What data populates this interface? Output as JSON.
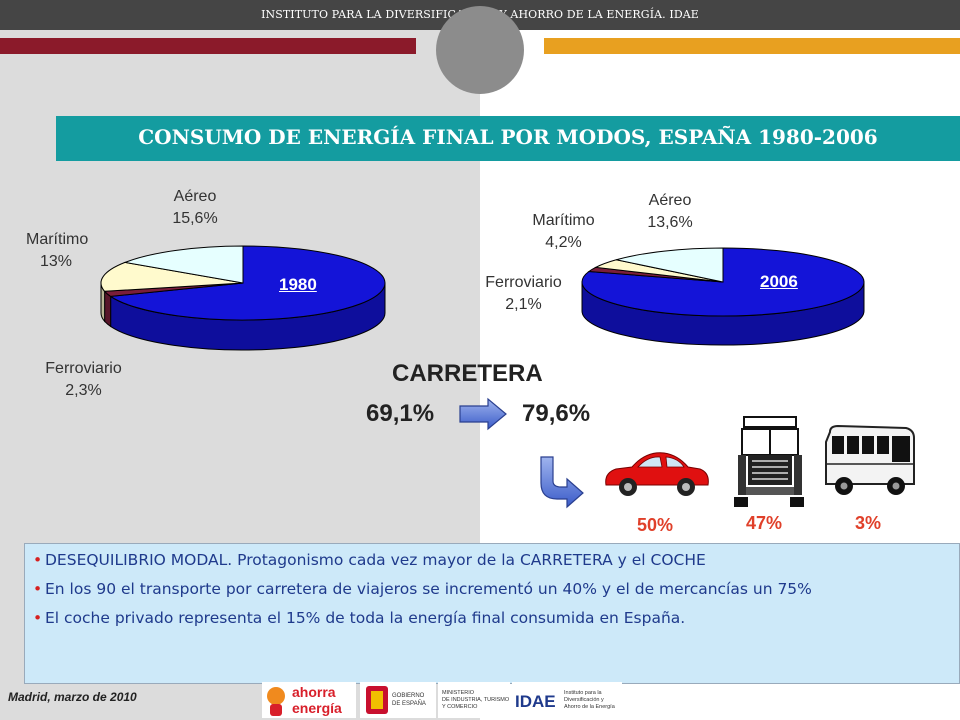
{
  "header": {
    "institute": "INSTITUTO PARA LA DIVERSIFICACIÓN Y AHORRO DE LA ENERGÍA. IDAE"
  },
  "title": "CONSUMO DE ENERGÍA FINAL POR MODOS, ESPAÑA 1980-2006",
  "chart_data": [
    {
      "type": "pie",
      "title": "1980",
      "labels": [
        "Carretera",
        "Ferroviario",
        "Marítimo",
        "Aéreo"
      ],
      "values": [
        69.1,
        2.3,
        13,
        15.6
      ],
      "value_labels": [
        "69,1%",
        "2,3%",
        "13%",
        "15,6%"
      ],
      "colors": [
        "#1414d8",
        "#7a1e3a",
        "#fffacd",
        "#e6ffff"
      ]
    },
    {
      "type": "pie",
      "title": "2006",
      "labels": [
        "Carretera",
        "Ferroviario",
        "Marítimo",
        "Aéreo"
      ],
      "values": [
        79.6,
        2.1,
        4.2,
        13.6
      ],
      "value_labels": [
        "79,6%",
        "2,1%",
        "4,2%",
        "13,6%"
      ],
      "colors": [
        "#1414d8",
        "#7a1e3a",
        "#fffacd",
        "#e6ffff"
      ]
    }
  ],
  "pie1980": {
    "year": "1980",
    "aereo_name": "Aéreo",
    "aereo_pct": "15,6%",
    "maritimo_name": "Marítimo",
    "maritimo_pct": "13%",
    "ferro_name": "Ferroviario",
    "ferro_pct": "2,3%"
  },
  "pie2006": {
    "year": "2006",
    "aereo_name": "Aéreo",
    "aereo_pct": "13,6%",
    "maritimo_name": "Marítimo",
    "maritimo_pct": "4,2%",
    "ferro_name": "Ferroviario",
    "ferro_pct": "2,1%"
  },
  "carretera": {
    "label": "CARRETERA",
    "from": "69,1%",
    "to": "79,6%"
  },
  "vehicle_shares": {
    "car": "50%",
    "truck": "47%",
    "bus": "3%"
  },
  "bullets": [
    "DESEQUILIBRIO MODAL. Protagonismo cada vez mayor de la CARRETERA y el COCHE",
    "En los 90 el transporte por carretera de viajeros se incrementó un 40% y el de mercancías un 75%",
    "El coche privado representa el 15% de toda la energía final consumida en España."
  ],
  "footer": {
    "date": "Madrid, marzo de 2010",
    "logos": {
      "ahorra_line1": "ahorra",
      "ahorra_line2": "energía",
      "gob_line1": "GOBIERNO",
      "gob_line2": "DE ESPAÑA",
      "min_line1": "MINISTERIO",
      "min_line2": "DE INDUSTRIA, TURISMO",
      "min_line3": "Y COMERCIO",
      "idae": "IDAE",
      "idae_line1": "Instituto para la",
      "idae_line2": "Diversificación y",
      "idae_line3": "Ahorro de la Energía"
    }
  },
  "colors": {
    "title_bar": "#149ca0",
    "road": "#1414d8",
    "share_text": "#e0402a",
    "bullet_text": "#1f3a8c"
  }
}
